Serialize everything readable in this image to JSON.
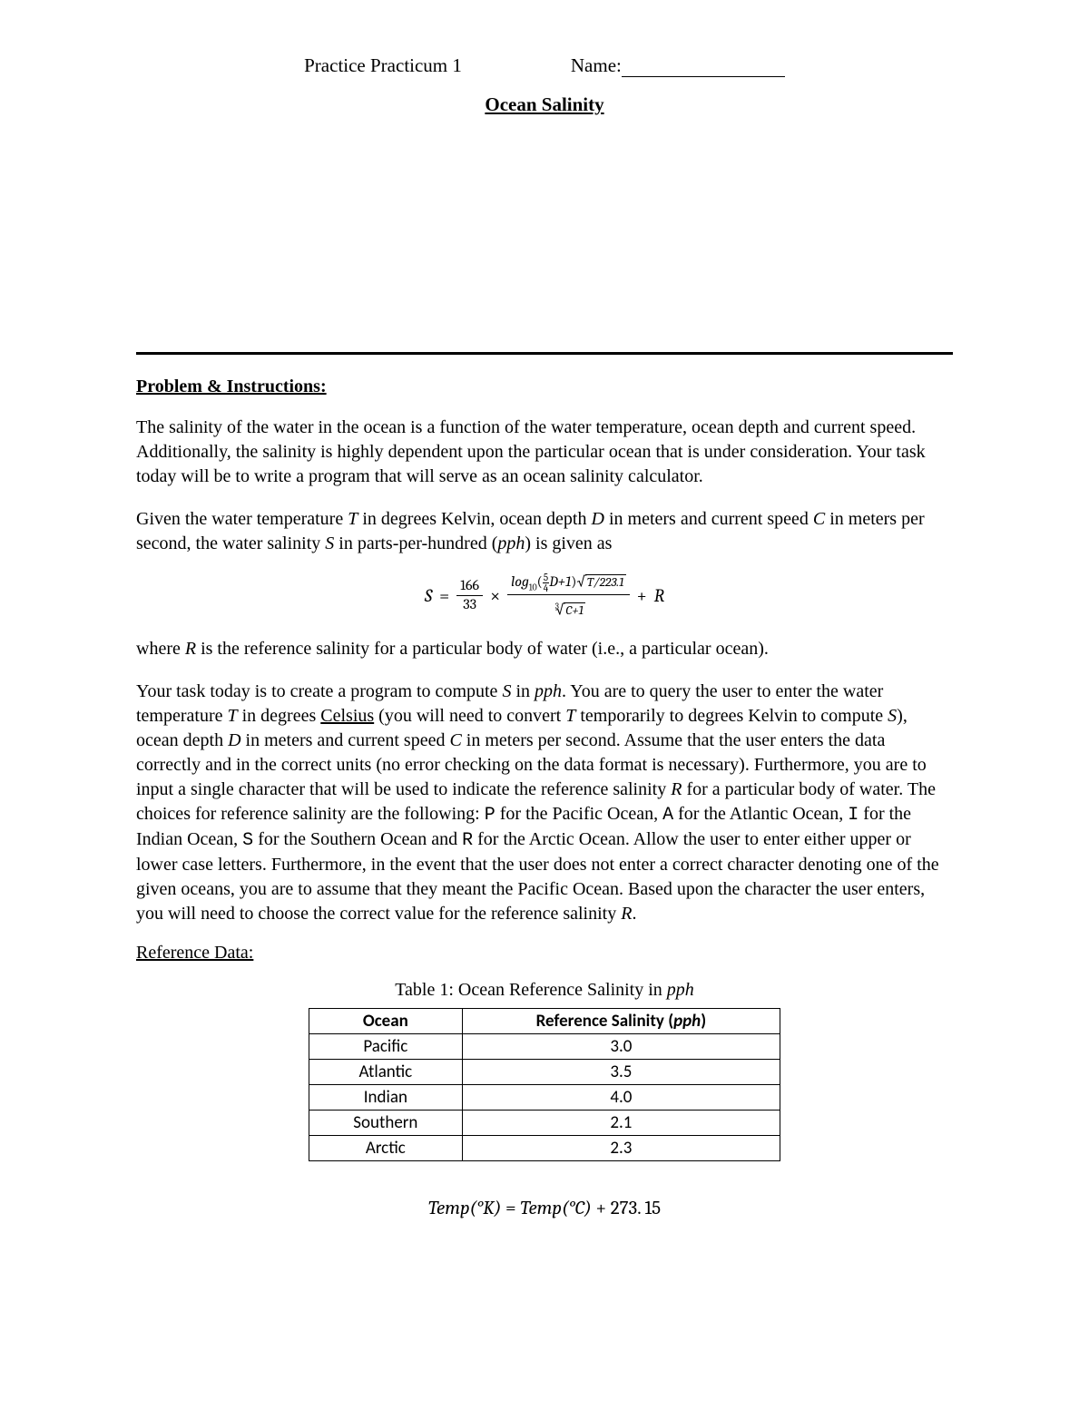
{
  "header": {
    "left": "Practice Practicum 1",
    "name_label": "Name:"
  },
  "title": "Ocean Salinity",
  "section_heading": "Problem & Instructions:",
  "para1": "The salinity of the water in the ocean is a function of the water temperature, ocean depth and current speed. Additionally, the salinity is highly dependent upon the particular ocean that is under consideration. Your task today will be to write a program that will serve as an ocean salinity calculator.",
  "para2_a": "Given the water temperature ",
  "para2_T": "T",
  "para2_b": " in degrees Kelvin, ocean depth ",
  "para2_D": "D",
  "para2_c": " in meters and current speed ",
  "para2_C": "C",
  "para2_d": " in meters per second, the water salinity ",
  "para2_S": "S",
  "para2_e": " in parts-per-hundred (",
  "para2_pph": "pph",
  "para2_f": ") is given as",
  "formula": {
    "S": "S",
    "eq": " = ",
    "frac1_num": "166",
    "frac1_den": "33",
    "times": " × ",
    "log_label": "log",
    "log_base": "10",
    "lp": "(",
    "sf_num": "5",
    "sf_den": "4",
    "Dplus1": "D+1",
    "rp": ")",
    "sqrt_arg_top": "T/223.1",
    "root_idx": "3",
    "sqrt_arg_bot": "C+1",
    "plus": " + ",
    "R": "R"
  },
  "para3_a": "where ",
  "para3_R": "R",
  "para3_b": " is the reference salinity for a particular body of water (i.e., a particular ocean).",
  "para4_a": "Your task today is to create a program to compute ",
  "para4_S": "S",
  "para4_b": " in ",
  "para4_pph": "pph",
  "para4_c": ". You are to query the user to enter the water temperature ",
  "para4_T": "T",
  "para4_d": " in degrees ",
  "para4_celsius": "Celsius",
  "para4_e": " (you will need to convert ",
  "para4_T2": "T",
  "para4_f": " temporarily to degrees Kelvin to compute ",
  "para4_S2": "S",
  "para4_g": "), ocean depth ",
  "para4_D": "D",
  "para4_h": " in meters and current speed ",
  "para4_C": "C",
  "para4_i": " in meters per second. Assume that the user enters the data correctly and in the correct units (no error checking on the data format is necessary). Furthermore, you are to input a single character that will be used to indicate the reference salinity ",
  "para4_R": "R",
  "para4_j": " for a particular body of water. The choices for reference salinity are the following: ",
  "code_P": "P",
  "para4_k": " for the Pacific Ocean, ",
  "code_A": "A",
  "para4_l": " for the Atlantic Ocean, ",
  "code_I": "I",
  "para4_m": " for the Indian Ocean, ",
  "code_S": "S",
  "para4_n": " for the Southern Ocean and ",
  "code_R": "R",
  "para4_o": " for the Arctic Ocean. Allow the user to enter either upper or lower case letters. Furthermore, in the event that the user does not enter a correct character denoting one of the given oceans, you are to assume that they meant the Pacific Ocean. Based upon the character the user enters, you will need to choose the correct value for the reference salinity ",
  "para4_R2": "R",
  "para4_p": ".",
  "ref_heading": "Reference Data:",
  "table": {
    "caption_a": "Table 1: Ocean Reference Salinity in ",
    "caption_pph": "pph",
    "col1": "Ocean",
    "col2_a": "Reference Salinity (",
    "col2_pph": "pph",
    "col2_b": ")",
    "rows": [
      {
        "ocean": "Pacific",
        "value": "3.0"
      },
      {
        "ocean": "Atlantic",
        "value": "3.5"
      },
      {
        "ocean": "Indian",
        "value": "4.0"
      },
      {
        "ocean": "Southern",
        "value": "2.1"
      },
      {
        "ocean": "Arctic",
        "value": "2.3"
      }
    ]
  },
  "conversion": {
    "lhs": "Temp(°K)",
    "eq": " = ",
    "rhs1": "Temp(°C)",
    "plus": " + ",
    "const": "273. 15"
  }
}
